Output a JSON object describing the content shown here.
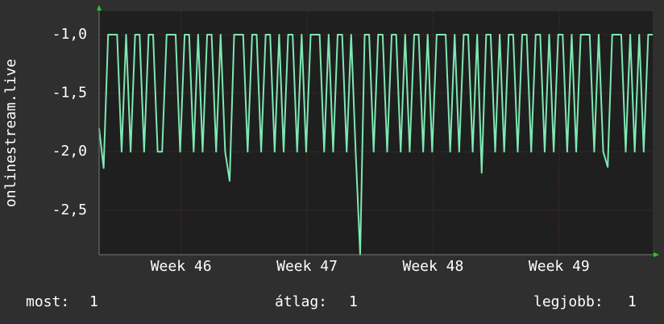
{
  "chart_data": {
    "type": "line",
    "y_label": "onlinestream.live",
    "xlim": [
      0,
      30.75
    ],
    "xticks": [
      {
        "value": 4.55,
        "label": "Week 46"
      },
      {
        "value": 11.55,
        "label": "Week 47"
      },
      {
        "value": 18.55,
        "label": "Week 48"
      },
      {
        "value": 25.55,
        "label": "Week 49"
      }
    ],
    "ylim": [
      -2.88,
      -0.8
    ],
    "yticks": [
      {
        "value": -1.0,
        "label": "-1,0"
      },
      {
        "value": -1.5,
        "label": "-1,5"
      },
      {
        "value": -2.0,
        "label": "-2,0"
      },
      {
        "value": -2.5,
        "label": "-2,5"
      }
    ],
    "grid": true,
    "x": [
      0,
      0.25,
      0.5,
      0.75,
      1,
      1.25,
      1.5,
      1.75,
      2,
      2.25,
      2.5,
      2.75,
      3,
      3.25,
      3.5,
      3.75,
      4,
      4.25,
      4.5,
      4.75,
      5,
      5.25,
      5.5,
      5.75,
      6,
      6.25,
      6.5,
      6.75,
      7,
      7.25,
      7.5,
      7.75,
      8,
      8.25,
      8.5,
      8.75,
      9,
      9.25,
      9.5,
      9.75,
      10,
      10.25,
      10.5,
      10.75,
      11,
      11.25,
      11.5,
      11.75,
      12,
      12.25,
      12.5,
      12.75,
      13,
      13.25,
      13.5,
      13.75,
      14,
      14.25,
      14.5,
      14.75,
      15,
      15.25,
      15.5,
      15.75,
      16,
      16.25,
      16.5,
      16.75,
      17,
      17.25,
      17.5,
      17.75,
      18,
      18.25,
      18.5,
      18.75,
      19,
      19.25,
      19.5,
      19.75,
      20,
      20.25,
      20.5,
      20.75,
      21,
      21.25,
      21.5,
      21.75,
      22,
      22.25,
      22.5,
      22.75,
      23,
      23.25,
      23.5,
      23.75,
      24,
      24.25,
      24.5,
      24.75,
      25,
      25.25,
      25.5,
      25.75,
      26,
      26.25,
      26.5,
      26.75,
      27,
      27.25,
      27.5,
      27.75,
      28,
      28.25,
      28.5,
      28.75,
      29,
      29.25,
      29.5,
      29.75,
      30,
      30.25,
      30.5,
      30.75
    ],
    "series": [
      {
        "name": "onlinestream.live",
        "color": "#7ee8b2",
        "values": [
          -1.8,
          -2.14,
          -1.0,
          -1.0,
          -1.0,
          -2.0,
          -1.0,
          -2.0,
          -1.0,
          -1.0,
          -2.0,
          -1.0,
          -1.0,
          -2.0,
          -2.0,
          -1.0,
          -1.0,
          -1.0,
          -2.0,
          -1.0,
          -1.0,
          -2.0,
          -1.0,
          -2.0,
          -1.0,
          -1.0,
          -2.0,
          -1.0,
          -2.0,
          -2.25,
          -1.0,
          -1.0,
          -1.0,
          -2.0,
          -1.0,
          -1.0,
          -2.0,
          -1.0,
          -1.0,
          -2.0,
          -1.0,
          -2.0,
          -1.0,
          -1.0,
          -2.0,
          -1.0,
          -2.0,
          -1.0,
          -1.0,
          -1.0,
          -2.0,
          -1.0,
          -2.0,
          -1.0,
          -1.0,
          -2.0,
          -1.0,
          -2.0,
          -2.88,
          -1.0,
          -1.0,
          -2.0,
          -1.0,
          -1.0,
          -2.0,
          -1.0,
          -1.0,
          -2.0,
          -1.0,
          -2.0,
          -1.0,
          -1.0,
          -2.0,
          -1.0,
          -2.0,
          -1.0,
          -1.0,
          -1.0,
          -2.0,
          -1.0,
          -2.0,
          -1.0,
          -1.0,
          -2.0,
          -1.0,
          -2.18,
          -1.0,
          -1.0,
          -2.0,
          -1.0,
          -2.0,
          -1.0,
          -1.0,
          -2.0,
          -1.0,
          -1.0,
          -2.0,
          -1.0,
          -1.0,
          -2.0,
          -1.0,
          -2.0,
          -1.0,
          -1.0,
          -2.0,
          -1.0,
          -2.0,
          -1.0,
          -1.0,
          -1.0,
          -2.0,
          -1.0,
          -2.0,
          -2.13,
          -1.0,
          -1.0,
          -1.0,
          -2.0,
          -1.0,
          -2.0,
          -1.0,
          -2.0,
          -1.0,
          -1.0
        ]
      }
    ],
    "legend": [
      {
        "label": "most:",
        "value": 1
      },
      {
        "label": "átlag:",
        "value": 1
      },
      {
        "label": "legjobb:",
        "value": 1
      }
    ]
  }
}
